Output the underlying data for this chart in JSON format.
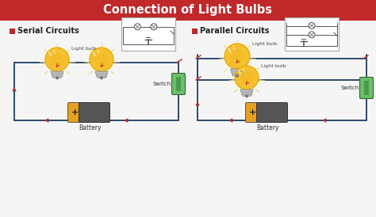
{
  "title": "Connection of Light Bulbs",
  "bg_color": "#f5f5f5",
  "header_bg": "#c0282a",
  "header_text_color": "#ffffff",
  "serial_label": "Serial Circuits",
  "parallel_label": "Parallel Circuits",
  "label_square_color": "#c0282a",
  "wire_color": "#2c4a6e",
  "arrow_color": "#cc2222",
  "battery_body_color": "#555555",
  "battery_gold_color": "#e8a020",
  "switch_color": "#6abf6a",
  "switch_dark": "#4a9a4a",
  "bulb_yellow": "#f5c030",
  "bulb_amber": "#e8a800",
  "bulb_glow": "#fffaaa",
  "schematic_border": "#aaaaaa",
  "schematic_wire": "#555555"
}
